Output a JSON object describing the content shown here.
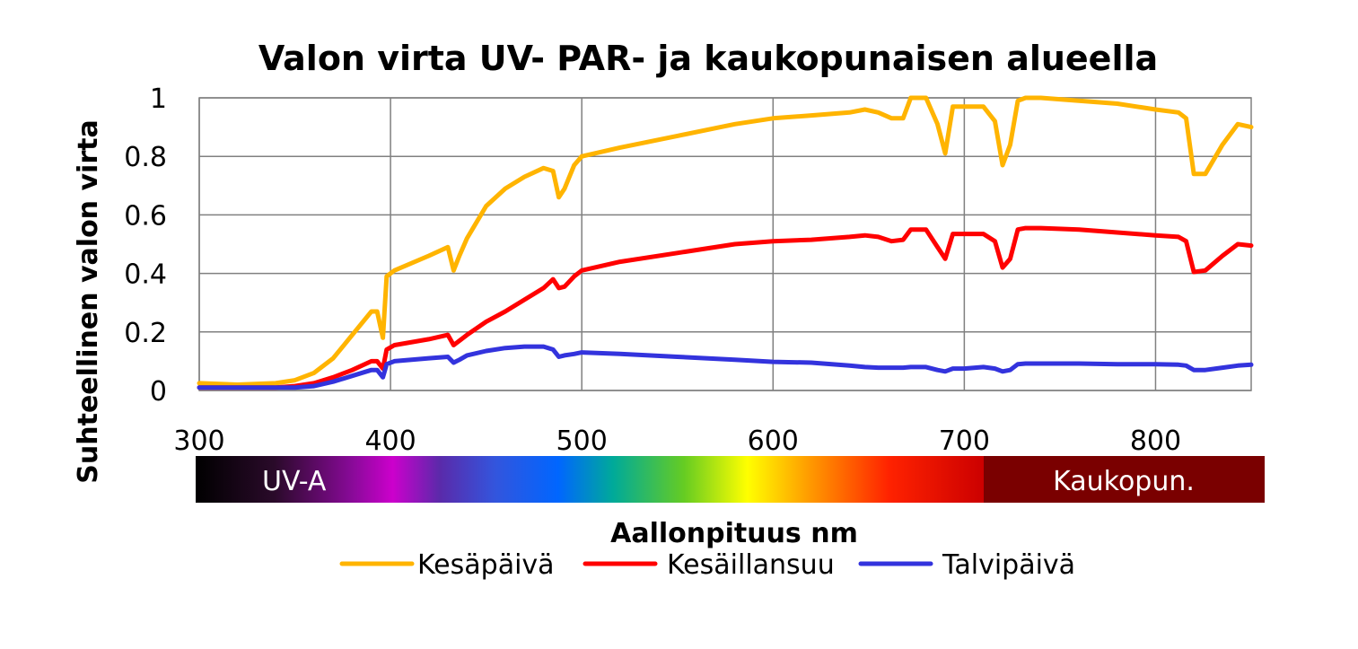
{
  "chart_data": {
    "type": "line",
    "title": "Valon virta UV- PAR- ja kaukopunaisen alueella",
    "xlabel": "Aallonpituus nm",
    "ylabel": "Suhteellinen valon virta",
    "xlim": [
      300,
      850
    ],
    "ylim": [
      0,
      1
    ],
    "x_ticks": [
      "300",
      "400",
      "500",
      "600",
      "700",
      "800"
    ],
    "y_ticks": [
      "0",
      "0.2",
      "0.4",
      "0.6",
      "0.8",
      "1"
    ],
    "grid": "on",
    "legend_position": "bottom",
    "spectrum_band": {
      "uv_label": "UV-A",
      "fr_label": "Kaukopun."
    },
    "series": [
      {
        "name": "Kesäpäivä",
        "color": "#FFB400",
        "x": [
          300,
          320,
          340,
          350,
          360,
          370,
          380,
          390,
          393,
          396,
          398,
          402,
          420,
          430,
          433,
          436,
          440,
          450,
          460,
          470,
          480,
          485,
          488,
          491,
          496,
          500,
          520,
          550,
          580,
          600,
          620,
          640,
          648,
          655,
          662,
          668,
          672,
          680,
          686,
          690,
          694,
          700,
          710,
          716,
          720,
          724,
          728,
          732,
          740,
          760,
          780,
          800,
          812,
          816,
          820,
          826,
          835,
          843,
          850
        ],
        "y": [
          0.025,
          0.02,
          0.025,
          0.035,
          0.06,
          0.11,
          0.19,
          0.27,
          0.27,
          0.18,
          0.39,
          0.41,
          0.46,
          0.49,
          0.41,
          0.46,
          0.52,
          0.63,
          0.69,
          0.73,
          0.76,
          0.75,
          0.66,
          0.69,
          0.77,
          0.8,
          0.83,
          0.87,
          0.91,
          0.93,
          0.94,
          0.95,
          0.96,
          0.95,
          0.93,
          0.93,
          1.0,
          1.0,
          0.91,
          0.81,
          0.97,
          0.97,
          0.97,
          0.92,
          0.77,
          0.84,
          0.99,
          1.0,
          1.0,
          0.99,
          0.98,
          0.96,
          0.95,
          0.93,
          0.74,
          0.74,
          0.84,
          0.91,
          0.9
        ]
      },
      {
        "name": "Kesäillansuu",
        "color": "#FF0000",
        "x": [
          300,
          320,
          340,
          350,
          360,
          370,
          380,
          390,
          393,
          396,
          398,
          402,
          420,
          430,
          433,
          436,
          440,
          450,
          460,
          470,
          480,
          485,
          488,
          491,
          496,
          500,
          520,
          550,
          580,
          600,
          620,
          640,
          648,
          655,
          662,
          668,
          672,
          680,
          686,
          690,
          694,
          700,
          710,
          716,
          720,
          724,
          728,
          732,
          740,
          760,
          780,
          800,
          812,
          816,
          820,
          826,
          835,
          843,
          850
        ],
        "y": [
          0.01,
          0.01,
          0.01,
          0.015,
          0.025,
          0.045,
          0.07,
          0.1,
          0.1,
          0.075,
          0.14,
          0.155,
          0.175,
          0.19,
          0.155,
          0.17,
          0.19,
          0.235,
          0.27,
          0.31,
          0.35,
          0.38,
          0.35,
          0.355,
          0.39,
          0.41,
          0.44,
          0.47,
          0.5,
          0.51,
          0.515,
          0.525,
          0.53,
          0.525,
          0.51,
          0.515,
          0.55,
          0.55,
          0.49,
          0.45,
          0.535,
          0.535,
          0.535,
          0.51,
          0.42,
          0.45,
          0.55,
          0.555,
          0.555,
          0.55,
          0.54,
          0.53,
          0.525,
          0.51,
          0.405,
          0.41,
          0.46,
          0.5,
          0.495
        ]
      },
      {
        "name": "Talvipäivä",
        "color": "#3333DD",
        "x": [
          300,
          320,
          340,
          350,
          360,
          370,
          380,
          390,
          393,
          396,
          398,
          402,
          420,
          430,
          433,
          436,
          440,
          450,
          460,
          470,
          480,
          485,
          488,
          491,
          496,
          500,
          520,
          550,
          580,
          600,
          620,
          640,
          648,
          655,
          662,
          668,
          672,
          680,
          686,
          690,
          694,
          700,
          710,
          716,
          720,
          724,
          728,
          732,
          740,
          760,
          780,
          800,
          812,
          816,
          820,
          826,
          835,
          843,
          850
        ],
        "y": [
          0.01,
          0.01,
          0.01,
          0.01,
          0.015,
          0.03,
          0.05,
          0.07,
          0.07,
          0.045,
          0.09,
          0.1,
          0.11,
          0.115,
          0.095,
          0.105,
          0.12,
          0.135,
          0.145,
          0.15,
          0.15,
          0.14,
          0.115,
          0.12,
          0.125,
          0.13,
          0.125,
          0.115,
          0.105,
          0.098,
          0.095,
          0.085,
          0.08,
          0.078,
          0.078,
          0.078,
          0.08,
          0.08,
          0.07,
          0.065,
          0.075,
          0.075,
          0.08,
          0.075,
          0.065,
          0.07,
          0.09,
          0.092,
          0.092,
          0.092,
          0.09,
          0.09,
          0.088,
          0.085,
          0.07,
          0.07,
          0.078,
          0.085,
          0.088
        ]
      }
    ]
  }
}
